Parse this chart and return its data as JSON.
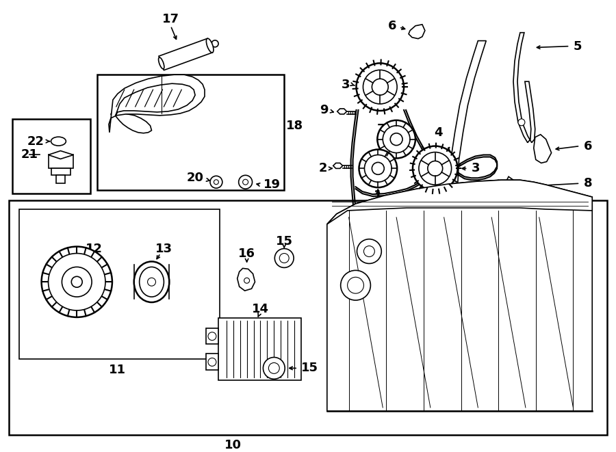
{
  "bg_color": "#ffffff",
  "fig_width": 9.0,
  "fig_height": 6.61,
  "dpi": 100,
  "lc": "#000000",
  "lw_thin": 0.8,
  "lw_med": 1.2,
  "lw_thick": 1.8,
  "font_label": 13,
  "font_small": 11
}
